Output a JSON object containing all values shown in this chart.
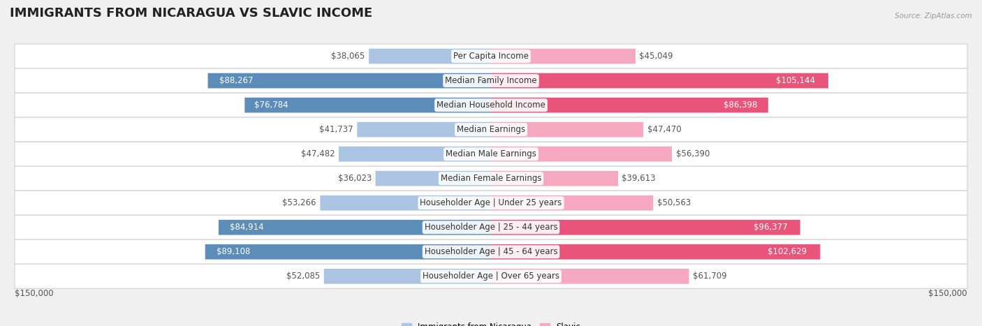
{
  "title": "IMMIGRANTS FROM NICARAGUA VS SLAVIC INCOME",
  "source": "Source: ZipAtlas.com",
  "categories": [
    "Per Capita Income",
    "Median Family Income",
    "Median Household Income",
    "Median Earnings",
    "Median Male Earnings",
    "Median Female Earnings",
    "Householder Age | Under 25 years",
    "Householder Age | 25 - 44 years",
    "Householder Age | 45 - 64 years",
    "Householder Age | Over 65 years"
  ],
  "nicaragua_values": [
    38065,
    88267,
    76784,
    41737,
    47482,
    36023,
    53266,
    84914,
    89108,
    52085
  ],
  "slavic_values": [
    45049,
    105144,
    86398,
    47470,
    56390,
    39613,
    50563,
    96377,
    102629,
    61709
  ],
  "nicaragua_labels": [
    "$38,065",
    "$88,267",
    "$76,784",
    "$41,737",
    "$47,482",
    "$36,023",
    "$53,266",
    "$84,914",
    "$89,108",
    "$52,085"
  ],
  "slavic_labels": [
    "$45,049",
    "$105,144",
    "$86,398",
    "$47,470",
    "$56,390",
    "$39,613",
    "$50,563",
    "$96,377",
    "$102,629",
    "$61,709"
  ],
  "nicaragua_color_light": "#aac4e2",
  "nicaragua_color_dark": "#5b8db8",
  "slavic_color_light": "#f5a8c0",
  "slavic_color_dark": "#e8547a",
  "max_value": 150000,
  "x_label_left": "$150,000",
  "x_label_right": "$150,000",
  "legend_nicaragua": "Immigrants from Nicaragua",
  "legend_slavic": "Slavic",
  "bg_color": "#f0f0f0",
  "row_bg": "#ffffff",
  "row_bg_alt": "#f7f7f7",
  "title_fontsize": 13,
  "label_fontsize": 8.5,
  "category_fontsize": 8.5,
  "threshold_dark": 70000
}
